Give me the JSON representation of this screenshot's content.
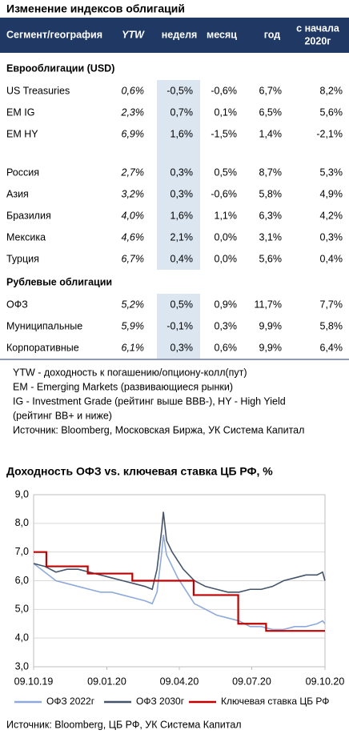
{
  "table": {
    "title": "Изменение индексов облигаций",
    "columns": [
      "Сегмент/география",
      "YTW",
      "неделя",
      "месяц",
      "год",
      [
        "с начала",
        "2020г"
      ]
    ],
    "sections": [
      {
        "title": "Еврооблигации (USD)",
        "rows": [
          [
            "US Treasuries",
            "0,6%",
            "-0,5%",
            "-0,6%",
            "6,7%",
            "8,2%"
          ],
          [
            "EM IG",
            "2,3%",
            "0,7%",
            "0,1%",
            "6,5%",
            "5,6%"
          ],
          [
            "EM HY",
            "6,9%",
            "1,6%",
            "-1,5%",
            "1,4%",
            "-2,1%"
          ]
        ]
      },
      {
        "rows": [
          [
            "Россия",
            "2,7%",
            "0,3%",
            "0,5%",
            "8,7%",
            "5,3%"
          ],
          [
            "Азия",
            "3,2%",
            "0,3%",
            "-0,6%",
            "5,8%",
            "4,9%"
          ],
          [
            "Бразилия",
            "4,0%",
            "1,6%",
            "1,1%",
            "6,3%",
            "4,2%"
          ],
          [
            "Мексика",
            "4,6%",
            "2,1%",
            "0,0%",
            "3,1%",
            "0,3%"
          ],
          [
            "Турция",
            "6,7%",
            "0,4%",
            "0,0%",
            "5,6%",
            "0,4%"
          ]
        ]
      },
      {
        "title": "Рублевые облигации",
        "rows": [
          [
            "ОФЗ",
            "5,2%",
            "0,5%",
            "0,9%",
            "11,7%",
            "7,7%"
          ],
          [
            "Муниципальные",
            "5,9%",
            "-0,1%",
            "0,3%",
            "9,9%",
            "5,8%"
          ],
          [
            "Корпоративные",
            "6,1%",
            "0,3%",
            "0,6%",
            "9,9%",
            "6,4%"
          ]
        ]
      }
    ],
    "notes": [
      "YTW - доходность к погашению/опциону-колл(пут)",
      "EM - Emerging Markets (развивающиеся рынки)",
      "IG - Investment Grade (рейтинг выше BBB-), HY - High Yield",
      "(рейтинг BB+ и ниже)",
      "Источник: Bloomberg, Московская Биржа, УК Система Капитал"
    ]
  },
  "chart_data": {
    "type": "line",
    "title": "Доходность ОФЗ vs. ключевая ставка ЦБ РФ, %",
    "x": [
      "09.10.19",
      "23.10.19",
      "06.11.19",
      "20.11.19",
      "04.12.19",
      "18.12.19",
      "01.01.20",
      "15.01.20",
      "29.01.20",
      "12.02.20",
      "26.02.20",
      "06.03.20",
      "12.03.20",
      "18.03.20",
      "20.03.20",
      "24.03.20",
      "31.03.20",
      "07.04.20",
      "14.04.20",
      "21.04.20",
      "28.04.20",
      "12.05.20",
      "26.05.20",
      "09.06.20",
      "23.06.20",
      "07.07.20",
      "21.07.20",
      "04.08.20",
      "18.08.20",
      "01.09.20",
      "15.09.20",
      "29.09.20",
      "06.10.20",
      "09.10.20"
    ],
    "series": [
      {
        "name": "ОФЗ 2022г",
        "color": "#8eaadb",
        "values": [
          6.6,
          6.3,
          6.0,
          5.9,
          5.8,
          5.7,
          5.6,
          5.6,
          5.5,
          5.4,
          5.3,
          5.2,
          5.6,
          7.0,
          7.6,
          6.9,
          6.5,
          6.1,
          5.8,
          5.5,
          5.2,
          5.0,
          4.8,
          4.7,
          4.6,
          4.4,
          4.4,
          4.3,
          4.3,
          4.4,
          4.4,
          4.5,
          4.6,
          4.5
        ]
      },
      {
        "name": "ОФЗ 2030г",
        "color": "#44546a",
        "values": [
          6.6,
          6.5,
          6.3,
          6.4,
          6.4,
          6.3,
          6.2,
          6.1,
          6.0,
          5.9,
          5.8,
          5.7,
          6.4,
          7.8,
          8.4,
          7.4,
          7.0,
          6.7,
          6.4,
          6.2,
          6.0,
          5.8,
          5.7,
          5.6,
          5.6,
          5.7,
          5.7,
          5.8,
          6.0,
          6.1,
          6.2,
          6.2,
          6.3,
          6.0
        ]
      },
      {
        "name": "Ключевая ставка ЦБ РФ",
        "color": "#c00000",
        "x": [
          "09.10.19",
          "25.10.19",
          "25.10.19",
          "16.12.19",
          "16.12.19",
          "10.02.20",
          "10.02.20",
          "27.04.20",
          "27.04.20",
          "22.06.20",
          "22.06.20",
          "27.07.20",
          "27.07.20",
          "09.10.20"
        ],
        "values": [
          7,
          7,
          6.5,
          6.5,
          6.25,
          6.25,
          6,
          6,
          5.5,
          5.5,
          4.5,
          4.5,
          4.25,
          4.25
        ]
      }
    ],
    "xlim": [
      "09.10.19",
      "09.10.20"
    ],
    "xticks": [
      "09.10.19",
      "09.01.20",
      "09.04.20",
      "09.07.20",
      "09.10.20"
    ],
    "ylim": [
      3,
      9
    ],
    "yticks": [
      {
        "value": 3,
        "label": "3,0"
      },
      {
        "value": 4,
        "label": "4,0"
      },
      {
        "value": 5,
        "label": "5,0"
      },
      {
        "value": 6,
        "label": "6,0"
      },
      {
        "value": 7,
        "label": "7,0"
      },
      {
        "value": 8,
        "label": "8,0"
      },
      {
        "value": 9,
        "label": "9,0"
      }
    ],
    "grid": true,
    "legend": "bottom",
    "source": "Источник: Bloomberg, ЦБ РФ, УК Система Капитал"
  }
}
